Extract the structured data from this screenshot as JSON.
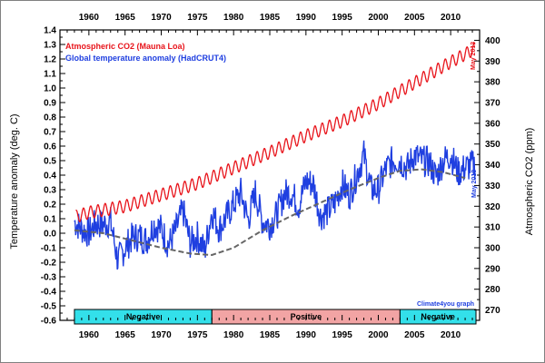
{
  "chart_data": {
    "type": "line",
    "title": "",
    "ylabel_left": "Temperature anomaly (deg. C)",
    "ylabel_right": "Atmospheric CO2 (ppm)",
    "xlim": [
      1956,
      2014
    ],
    "ylim_left": [
      -0.6,
      1.4
    ],
    "ylim_right": [
      265,
      405
    ],
    "x_ticks": [
      1960,
      1965,
      1970,
      1975,
      1980,
      1985,
      1990,
      1995,
      2000,
      2005,
      2010
    ],
    "y_ticks_left": [
      -0.6,
      -0.5,
      -0.4,
      -0.3,
      -0.2,
      -0.1,
      0.0,
      0.1,
      0.2,
      0.3,
      0.4,
      0.5,
      0.6,
      0.7,
      0.8,
      0.9,
      1.0,
      1.1,
      1.2,
      1.3,
      1.4
    ],
    "y_ticks_right": [
      270,
      280,
      290,
      300,
      310,
      320,
      330,
      340,
      350,
      360,
      370,
      380,
      390,
      400
    ],
    "y_tick_labels_left": [
      "-0.6",
      "-0.5",
      "-0.4",
      "-0.3",
      "-0.2",
      "-0.1",
      "0.0",
      "0.1",
      "0.2",
      "0.3",
      "0.4",
      "0.5",
      "0.6",
      "0.7",
      "0.8",
      "0.9",
      "1.0",
      "1.1",
      "1.2",
      "1.3",
      "1.4"
    ],
    "legend": [
      {
        "name": "Atmospheric CO2 (Mauna Loa)",
        "color": "#e8141b"
      },
      {
        "name": "Global temperature anomaly (HadCRUT4)",
        "color": "#1f3fe0"
      }
    ],
    "series": [
      {
        "name": "Atmospheric CO2 (Mauna Loa)",
        "axis": "right",
        "color": "#e8141b",
        "seasonal_amplitude": 3,
        "x": [
          1958.2,
          1960,
          1965,
          1970,
          1975,
          1980,
          1985,
          1990,
          1995,
          2000,
          2005,
          2010,
          2013.4
        ],
        "values": [
          315,
          317,
          320,
          325.5,
          331,
          338.5,
          346,
          354,
          361,
          369.5,
          379.5,
          389.5,
          396
        ]
      },
      {
        "name": "Global temperature anomaly (HadCRUT4)",
        "axis": "left",
        "color": "#1f3fe0",
        "x": [
          1958,
          1959,
          1960,
          1961,
          1962,
          1963,
          1964,
          1965,
          1966,
          1967,
          1968,
          1969,
          1970,
          1971,
          1972,
          1973,
          1974,
          1975,
          1976,
          1977,
          1978,
          1979,
          1980,
          1981,
          1982,
          1983,
          1984,
          1985,
          1986,
          1987,
          1988,
          1989,
          1990,
          1991,
          1992,
          1993,
          1994,
          1995,
          1996,
          1997,
          1998,
          1999,
          2000,
          2001,
          2002,
          2003,
          2004,
          2005,
          2006,
          2007,
          2008,
          2009,
          2010,
          2011,
          2012,
          2013
        ],
        "values": [
          0.08,
          0.03,
          0.0,
          0.07,
          0.06,
          0.08,
          -0.19,
          -0.1,
          -0.03,
          -0.02,
          -0.05,
          0.06,
          0.03,
          -0.08,
          0.02,
          0.16,
          -0.07,
          -0.02,
          -0.12,
          0.15,
          0.03,
          0.11,
          0.2,
          0.28,
          0.09,
          0.28,
          0.08,
          0.06,
          0.13,
          0.27,
          0.28,
          0.19,
          0.36,
          0.34,
          0.12,
          0.15,
          0.21,
          0.34,
          0.26,
          0.4,
          0.54,
          0.3,
          0.3,
          0.44,
          0.5,
          0.5,
          0.45,
          0.54,
          0.5,
          0.49,
          0.39,
          0.5,
          0.54,
          0.42,
          0.45,
          0.47
        ]
      },
      {
        "name": "Smoothed temperature trend",
        "axis": "left",
        "color": "#666666",
        "style": "dashed",
        "x": [
          1958,
          1962,
          1966,
          1970,
          1974,
          1977,
          1980,
          1984,
          1988,
          1992,
          1996,
          2000,
          2003,
          2006,
          2009,
          2012
        ],
        "values": [
          0.02,
          0.0,
          -0.05,
          -0.1,
          -0.14,
          -0.15,
          -0.1,
          0.02,
          0.12,
          0.21,
          0.3,
          0.38,
          0.43,
          0.44,
          0.42,
          0.38
        ]
      }
    ],
    "phases": [
      {
        "label": "Negative",
        "from": 1958,
        "to": 1977,
        "color": "#33e0ea"
      },
      {
        "label": "Positive",
        "from": 1977,
        "to": 2003,
        "color": "#f2a4a4"
      },
      {
        "label": "Negative",
        "from": 2003,
        "to": 2013.5,
        "color": "#33e0ea"
      }
    ],
    "annotations": {
      "co2_end": "May 2013",
      "temp_end": "May 2013",
      "credit": "Climate4you graph"
    }
  }
}
